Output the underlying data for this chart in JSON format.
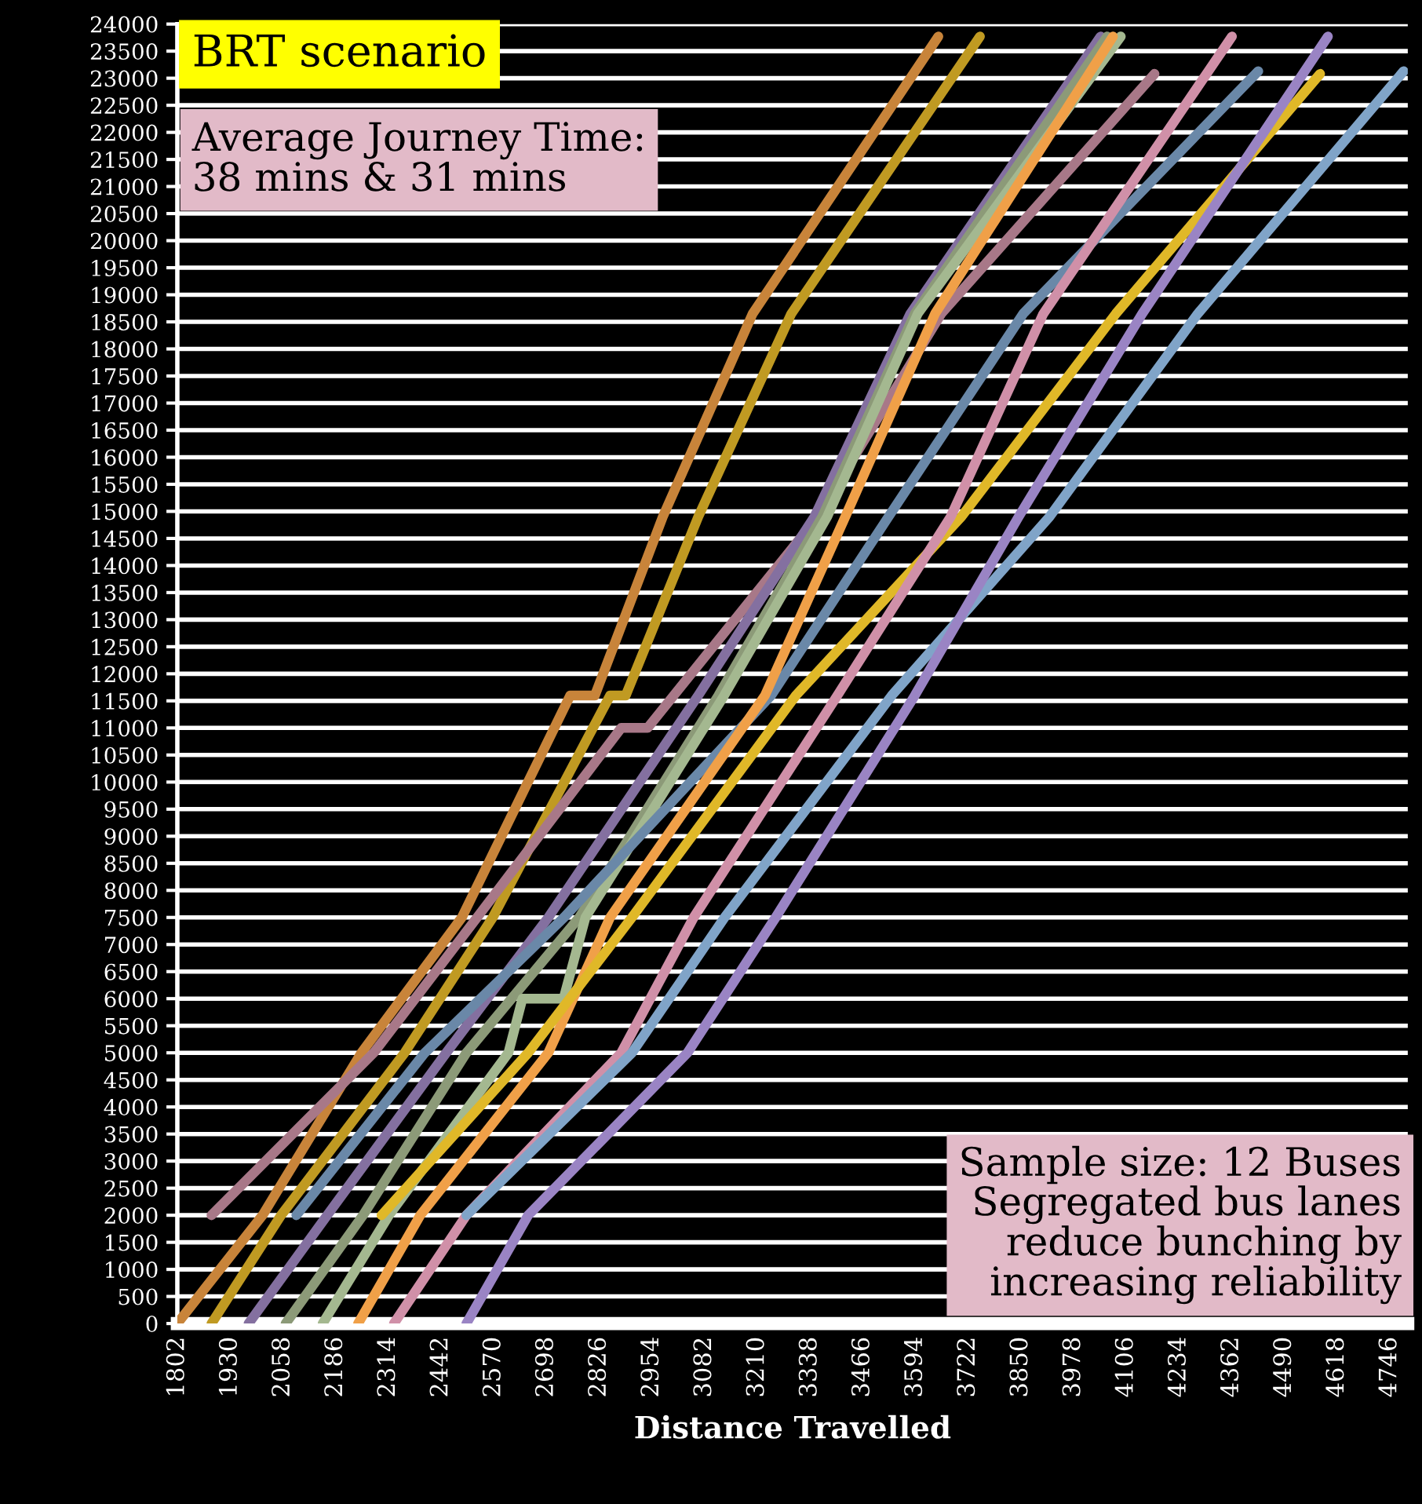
{
  "chart_data": {
    "type": "line",
    "xlabel": "Distance Travelled",
    "annotations": [
      "BRT scenario",
      "Average Journey Time:\n38 mins & 31 mins",
      "Sample size: 12 Buses\nSegregated bus lanes\nreduce bunching by\nincreasing reliability"
    ],
    "xlim": [
      1802,
      4790
    ],
    "xticks": [
      1802,
      1930,
      2058,
      2186,
      2314,
      2442,
      2570,
      2698,
      2826,
      2954,
      3082,
      3210,
      3338,
      3466,
      3594,
      3722,
      3850,
      3978,
      4106,
      4234,
      4362,
      4490,
      4618,
      4746
    ],
    "ylim": [
      0,
      24000
    ],
    "yticks": [
      0,
      500,
      1000,
      1500,
      2000,
      2500,
      3000,
      3500,
      4000,
      4500,
      5000,
      5500,
      6000,
      6500,
      7000,
      7500,
      8000,
      8500,
      9000,
      9500,
      10000,
      10500,
      11000,
      11500,
      12000,
      12500,
      13000,
      13500,
      14000,
      14500,
      15000,
      15500,
      16000,
      16500,
      17000,
      17500,
      18000,
      18500,
      19000,
      19500,
      20000,
      20500,
      21000,
      21500,
      22000,
      22500,
      23000,
      23500,
      24000
    ],
    "grid": "y",
    "series": [
      {
        "color": "#c8843a",
        "x": [
          1802,
          2009,
          2249,
          2493,
          2756,
          2816,
          2981,
          3199,
          3650
        ],
        "values": [
          0,
          2000,
          5000,
          7500,
          11600,
          11600,
          14900,
          18650,
          23770
        ]
      },
      {
        "color": "#c09a22",
        "x": [
          1885,
          2054,
          2354,
          2568,
          2853,
          2891,
          3067,
          3293,
          3751
        ],
        "values": [
          0,
          2000,
          5000,
          7500,
          11600,
          11600,
          14900,
          18650,
          23770
        ]
      },
      {
        "color": "#a87888",
        "x": [
          1885,
          2279,
          2530,
          2880,
          2944,
          3357,
          3657,
          4175
        ],
        "values": [
          2000,
          5000,
          7500,
          11000,
          11000,
          14900,
          18650,
          23080
        ]
      },
      {
        "color": "#8470a0",
        "x": [
          1975,
          2166,
          2455,
          2703,
          3067,
          3349,
          3582,
          4044
        ],
        "values": [
          0,
          2000,
          5000,
          7500,
          11600,
          14900,
          18650,
          23770
        ]
      },
      {
        "color": "#8c9a78",
        "x": [
          2065,
          2253,
          2504,
          2778,
          3116,
          3368,
          3593,
          4060
        ],
        "values": [
          0,
          2000,
          5000,
          7500,
          11600,
          14900,
          18650,
          23770
        ]
      },
      {
        "color": "#a4b890",
        "x": [
          2155,
          2316,
          2606,
          2640,
          2740,
          2793,
          3130,
          3380,
          3600,
          4093
        ],
        "values": [
          0,
          2000,
          5000,
          6000,
          6000,
          7500,
          11600,
          14900,
          18650,
          23770
        ]
      },
      {
        "color": "#6a88a8",
        "x": [
          2091,
          2403,
          2741,
          3244,
          3529,
          3856,
          4427
        ],
        "values": [
          2000,
          5000,
          7500,
          11600,
          14900,
          18650,
          23130
        ]
      },
      {
        "color": "#f0a048",
        "x": [
          2241,
          2392,
          2703,
          2853,
          3229,
          3424,
          3642,
          4074
        ],
        "values": [
          0,
          2000,
          5000,
          7500,
          11600,
          14900,
          18650,
          23770
        ]
      },
      {
        "color": "#e0b828",
        "x": [
          2298,
          2654,
          2906,
          3304,
          3706,
          4081,
          4577
        ],
        "values": [
          2000,
          5000,
          7500,
          11600,
          14900,
          18650,
          23080
        ]
      },
      {
        "color": "#d090a8",
        "x": [
          2328,
          2504,
          2880,
          3056,
          3405,
          3680,
          3905,
          4363
        ],
        "values": [
          0,
          2000,
          5000,
          7500,
          11600,
          14900,
          18650,
          23770
        ]
      },
      {
        "color": "#80a4c8",
        "x": [
          2504,
          2906,
          3131,
          3537,
          3920,
          4280,
          4780
        ],
        "values": [
          2000,
          5000,
          7500,
          11600,
          14900,
          18650,
          23130
        ]
      },
      {
        "color": "#9a84c4",
        "x": [
          2504,
          2654,
          3041,
          3255,
          3593,
          3845,
          4145,
          4596
        ],
        "values": [
          0,
          2000,
          5000,
          7500,
          11600,
          14900,
          18650,
          23770
        ]
      }
    ]
  }
}
